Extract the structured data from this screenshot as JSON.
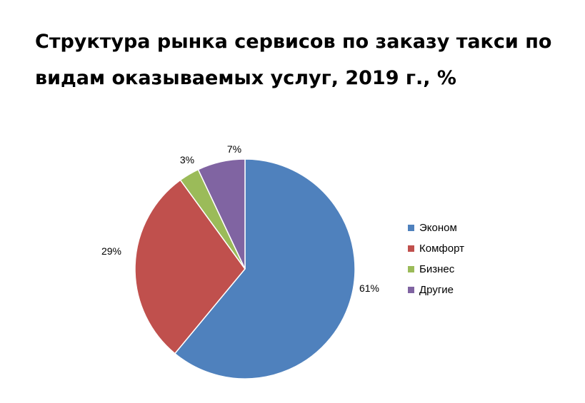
{
  "chart_data": {
    "type": "pie",
    "title_lines": [
      "Структура рынка сервисов по заказу такси по",
      "видам оказываемых услуг, 2019 г., %"
    ],
    "unit": "%",
    "series": [
      {
        "name": "Эконом",
        "value": 61,
        "label": "61%",
        "color": "#4f81bd"
      },
      {
        "name": "Комфорт",
        "value": 29,
        "label": "29%",
        "color": "#c0504d"
      },
      {
        "name": "Бизнес",
        "value": 3,
        "label": "3%",
        "color": "#9bbb59"
      },
      {
        "name": "Другие",
        "value": 7,
        "label": "7%",
        "color": "#8064a2"
      }
    ],
    "legend_position": "right"
  }
}
